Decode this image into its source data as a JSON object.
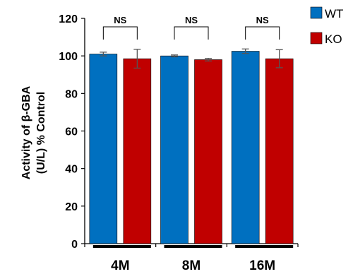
{
  "chart_data": {
    "type": "bar",
    "categories": [
      "4M",
      "8M",
      "16M"
    ],
    "series": [
      {
        "name": "WT",
        "color": "#0070C0",
        "values": [
          101,
          100,
          102.5
        ],
        "errors": [
          1,
          0.5,
          1.2
        ]
      },
      {
        "name": "KO",
        "color": "#C00000",
        "values": [
          98.5,
          98,
          98.5
        ],
        "errors": [
          5,
          0.7,
          4.8
        ]
      }
    ],
    "ylabel_lines": [
      "Activity of β-GBA",
      "(U/L) % Control"
    ],
    "ylim": [
      0,
      120
    ],
    "yticks": [
      0,
      20,
      40,
      60,
      80,
      100,
      120
    ],
    "significance": [
      "NS",
      "NS",
      "NS"
    ],
    "legend_position": "top-right",
    "grid": false
  }
}
